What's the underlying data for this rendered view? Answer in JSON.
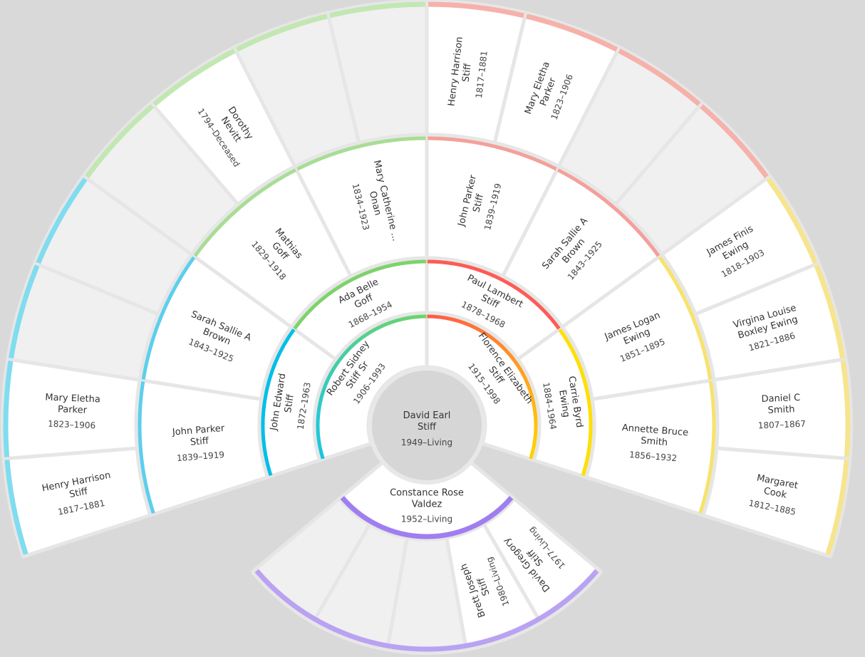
{
  "root": {
    "lines": [
      "David Earl",
      "Stiff"
    ],
    "dates": "1949–Living"
  },
  "fan": {
    "rings": [
      {
        "people": [
          {
            "lines": [
              "Robert Sidney",
              "Stiff Sr"
            ],
            "dates": "1906–1993",
            "color": [
              "#18c6e6",
              "#6fd46a"
            ]
          },
          {
            "lines": [
              "Florence Elizabeth",
              "Stiff"
            ],
            "dates": "1915–1998",
            "color": [
              "#ff5a48",
              "#ffd400"
            ]
          }
        ]
      },
      {
        "people": [
          {
            "lines": [
              "John Edward",
              "Stiff"
            ],
            "dates": "1872–1963",
            "color": "#00bfe8"
          },
          {
            "lines": [
              "Ada Belle",
              "Goff"
            ],
            "dates": "1868–1954",
            "color": "#7dd36a"
          },
          {
            "lines": [
              "Paul Lambert",
              "Stiff"
            ],
            "dates": "1878–1968",
            "color": "#ff5a55"
          },
          {
            "lines": [
              "Carrie Byrd",
              "Ewing"
            ],
            "dates": "1884–1964",
            "color": "#ffdf00"
          }
        ]
      },
      {
        "people": [
          {
            "lines": [
              "John Parker",
              "Stiff"
            ],
            "dates": "1839–1919",
            "color": "#5ccfec"
          },
          {
            "lines": [
              "Sarah Sallie A",
              "Brown"
            ],
            "dates": "1843–1925",
            "color": "#5ccfec"
          },
          {
            "lines": [
              "Mathias",
              "Goff"
            ],
            "dates": "1829–1918",
            "color": "#a8dd95"
          },
          {
            "lines": [
              "Mary Catherine ...",
              "Onan"
            ],
            "dates": "1834–1923",
            "color": "#a8dd95"
          },
          {
            "lines": [
              "John Parker",
              "Stiff"
            ],
            "dates": "1839–1919",
            "color": "#f4a09a"
          },
          {
            "lines": [
              "Sarah Sallie A",
              "Brown"
            ],
            "dates": "1843–1925",
            "color": "#f4a09a"
          },
          {
            "lines": [
              "James Logan",
              "Ewing"
            ],
            "dates": "1851–1895",
            "color": "#f7e36c"
          },
          {
            "lines": [
              "Annette Bruce",
              "Smith"
            ],
            "dates": "1856–1932",
            "color": "#f7e36c"
          }
        ]
      },
      {
        "people": [
          {
            "lines": [
              "Henry Harrison",
              "Stiff"
            ],
            "dates": "1817–1881",
            "color": "#80dcef"
          },
          {
            "lines": [
              "Mary Eletha",
              "Parker"
            ],
            "dates": "1823–1906",
            "color": "#80dcef"
          },
          {
            "lines": null,
            "dates": null,
            "color": "#80dcef"
          },
          {
            "lines": null,
            "dates": null,
            "color": "#80dcef"
          },
          {
            "lines": null,
            "dates": null,
            "color": "#c2e7b3"
          },
          {
            "lines": [
              "Dorothy",
              "Nevitt"
            ],
            "dates": "1794–Deceased",
            "color": "#c2e7b3"
          },
          {
            "lines": null,
            "dates": null,
            "color": "#c2e7b3"
          },
          {
            "lines": null,
            "dates": null,
            "color": "#c2e7b3"
          },
          {
            "lines": [
              "Henry Harrison",
              "Stiff"
            ],
            "dates": "1817–1881",
            "color": "#f6b1aa"
          },
          {
            "lines": [
              "Mary Eletha",
              "Parker"
            ],
            "dates": "1823–1906",
            "color": "#f6b1aa"
          },
          {
            "lines": null,
            "dates": null,
            "color": "#f6b1aa"
          },
          {
            "lines": null,
            "dates": null,
            "color": "#f6b1aa"
          },
          {
            "lines": [
              "James Finis",
              "Ewing"
            ],
            "dates": "1818–1903",
            "color": "#f6e58e"
          },
          {
            "lines": [
              "Virgina Louise",
              "Boxley Ewing"
            ],
            "dates": "1821–1886",
            "color": "#f6e58e"
          },
          {
            "lines": [
              "Daniel C",
              "Smith"
            ],
            "dates": "1807–1867",
            "color": "#f6e58e"
          },
          {
            "lines": [
              "Margaret",
              "Cook"
            ],
            "dates": "1812–1885",
            "color": "#f6e58e"
          }
        ]
      }
    ]
  },
  "spouse": {
    "lines": [
      "Constance Rose",
      "Valdez"
    ],
    "dates": "1952–Living",
    "color": "#a07ef0"
  },
  "children": {
    "color": "#baa2f2",
    "people": [
      {
        "lines": [
          "David Gregory",
          "Stiff"
        ],
        "dates": "1977–Living"
      },
      {
        "lines": [
          "Brett Joseph",
          "Stiff"
        ],
        "dates": "1980–Living"
      },
      {
        "lines": null,
        "dates": null
      },
      {
        "lines": null,
        "dates": null
      },
      {
        "lines": null,
        "dates": null
      }
    ]
  }
}
